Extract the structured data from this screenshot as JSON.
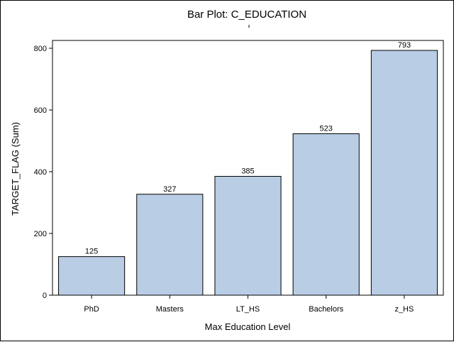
{
  "chart_data": {
    "type": "bar",
    "title": "Bar Plot: C_EDUCATION",
    "xlabel": "Max Education Level",
    "ylabel": "TARGET_FLAG (Sum)",
    "categories": [
      "PhD",
      "Masters",
      "LT_HS",
      "Bachelors",
      "z_HS"
    ],
    "values": [
      125,
      327,
      385,
      523,
      793
    ],
    "data_labels": [
      "125",
      "327",
      "385",
      "523",
      "793"
    ],
    "y_ticks": [
      0,
      200,
      400,
      600,
      800
    ],
    "ylim": [
      0,
      800
    ],
    "grid": false,
    "legend": "none",
    "bar_color": "#b9cde5",
    "bar_outline": "#000000"
  }
}
